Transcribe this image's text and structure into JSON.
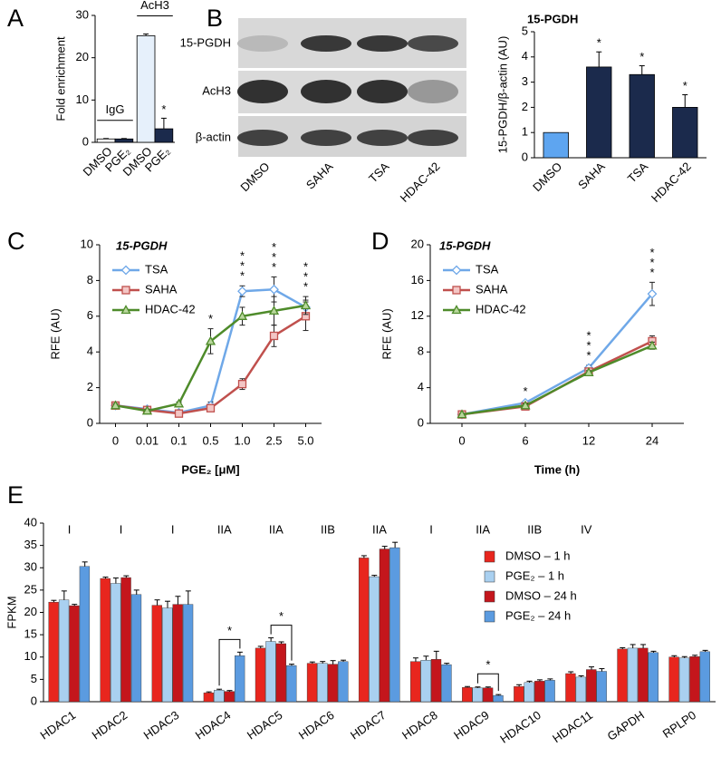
{
  "chart_data": [
    {
      "type": "bar",
      "panel": "A",
      "ylabel": "Fold enrichment",
      "categories": [
        "DMSO",
        "PGE₂",
        "DMSO",
        "PGE₂"
      ],
      "groups": [
        "IgG",
        "AcH3"
      ],
      "values": [
        0.8,
        0.8,
        25.2,
        3.2
      ],
      "errors": [
        0.1,
        0.1,
        0.4,
        2.5
      ],
      "colors": [
        "#ffffff",
        "#1b2a4c",
        "#e6f0fb",
        "#1b2a4c"
      ],
      "significance": [
        null,
        null,
        null,
        "*"
      ],
      "ylim": [
        0,
        30
      ],
      "yticks": [
        0,
        10,
        20,
        30
      ]
    },
    {
      "type": "bar",
      "panel": "B",
      "title": "15-PGDH",
      "ylabel": "15-PGDH/β-actin (AU)",
      "blot_rows": [
        "15-PGDH",
        "AcH3",
        "β-actin"
      ],
      "categories": [
        "DMSO",
        "SAHA",
        "TSA",
        "HDAC-42"
      ],
      "values": [
        1,
        3.6,
        3.3,
        2.0
      ],
      "errors": [
        null,
        0.6,
        0.35,
        0.5
      ],
      "colors": [
        "#5ea5f0",
        "#1b2a4c",
        "#1b2a4c",
        "#1b2a4c"
      ],
      "significance": [
        null,
        "*",
        "*",
        "*"
      ],
      "ylim": [
        0,
        5
      ],
      "yticks": [
        0,
        1,
        2,
        3,
        4,
        5
      ]
    },
    {
      "type": "line",
      "panel": "C",
      "title": "15-PGDH",
      "ylabel": "RFE (AU)",
      "xlabel": "PGE₂ [μM]",
      "categories": [
        "0",
        "0.01",
        "0.1",
        "0.5",
        "1.0",
        "2.5",
        "5.0"
      ],
      "series": [
        {
          "name": "TSA",
          "color": "#6fa8e8",
          "values": [
            1,
            0.8,
            0.6,
            1.0,
            7.4,
            7.5,
            6.5
          ],
          "errors": [
            0.1,
            0.1,
            0.1,
            0.2,
            0.3,
            0.7,
            0.4
          ],
          "significance": [
            null,
            null,
            null,
            null,
            "*",
            "*",
            "*"
          ]
        },
        {
          "name": "SAHA",
          "color": "#c0504d",
          "values": [
            1,
            0.75,
            0.55,
            0.85,
            2.2,
            4.9,
            6.0
          ],
          "errors": [
            0.1,
            0.1,
            0.1,
            0.1,
            0.3,
            0.6,
            0.8
          ],
          "significance": [
            null,
            null,
            null,
            null,
            "*",
            "*",
            "*"
          ]
        },
        {
          "name": "HDAC-42",
          "color": "#4e8b2a",
          "values": [
            1,
            0.7,
            1.1,
            4.6,
            6.0,
            6.3,
            6.6
          ],
          "errors": [
            0.1,
            0.1,
            0.1,
            0.7,
            0.5,
            0.8,
            0.5
          ],
          "significance": [
            null,
            null,
            null,
            "*",
            "*",
            "*",
            "*"
          ]
        }
      ],
      "ylim": [
        0,
        10
      ],
      "yticks": [
        0,
        2,
        4,
        6,
        8,
        10
      ]
    },
    {
      "type": "line",
      "panel": "D",
      "title": "15-PGDH",
      "ylabel": "RFE (AU)",
      "xlabel": "Time (h)",
      "categories": [
        "0",
        "6",
        "12",
        "24"
      ],
      "series": [
        {
          "name": "TSA",
          "color": "#6fa8e8",
          "values": [
            1,
            2.3,
            6.2,
            14.5
          ],
          "errors": [
            0.1,
            0.2,
            0.3,
            1.3
          ],
          "significance": [
            null,
            "*",
            "*",
            "*"
          ]
        },
        {
          "name": "SAHA",
          "color": "#c0504d",
          "values": [
            1,
            1.9,
            5.8,
            9.2
          ],
          "errors": [
            0.1,
            0.2,
            0.3,
            0.6
          ],
          "significance": [
            null,
            null,
            "*",
            "*"
          ]
        },
        {
          "name": "HDAC-42",
          "color": "#4e8b2a",
          "values": [
            1,
            2.0,
            5.7,
            8.7
          ],
          "errors": [
            0.1,
            0.2,
            0.2,
            0.4
          ],
          "significance": [
            null,
            null,
            "*",
            "*"
          ]
        }
      ],
      "ylim": [
        0,
        20
      ],
      "yticks": [
        0,
        4,
        8,
        12,
        16,
        20
      ]
    },
    {
      "type": "grouped_bar",
      "panel": "E",
      "ylabel": "FPKM",
      "categories": [
        "HDAC1",
        "HDAC2",
        "HDAC3",
        "HDAC4",
        "HDAC5",
        "HDAC6",
        "HDAC7",
        "HDAC8",
        "HDAC9",
        "HDAC10",
        "HDAC11",
        "GAPDH",
        "RPLP0"
      ],
      "classes": [
        "I",
        "I",
        "I",
        "IIA",
        "IIA",
        "IIB",
        "IIA",
        "I",
        "IIA",
        "IIB",
        "IV",
        null,
        null
      ],
      "significance": [
        null,
        null,
        null,
        "*",
        "*",
        null,
        null,
        null,
        "*",
        null,
        null,
        null,
        null
      ],
      "series": [
        {
          "name": "DMSO – 1 h",
          "color": "#e8261e",
          "values": [
            22.3,
            27.6,
            21.6,
            2.0,
            12.0,
            8.6,
            32.2,
            9.0,
            3.2,
            3.4,
            6.3,
            11.8,
            10.0
          ],
          "errors": [
            0.4,
            0.3,
            1.2,
            0.2,
            0.4,
            0.3,
            0.5,
            0.8,
            0.2,
            0.4,
            0.4,
            0.3,
            0.3
          ]
        },
        {
          "name": "PGE₂ – 1 h",
          "color": "#a9d0f0",
          "values": [
            22.8,
            26.5,
            21.0,
            2.6,
            13.5,
            8.6,
            28.0,
            9.3,
            3.1,
            4.3,
            5.5,
            12.0,
            9.8
          ],
          "errors": [
            2.0,
            1.2,
            1.5,
            0.2,
            0.8,
            0.4,
            0.3,
            0.9,
            0.2,
            0.3,
            0.3,
            0.8,
            0.3
          ]
        },
        {
          "name": "DMSO – 24 h",
          "color": "#c4161c",
          "values": [
            21.5,
            27.8,
            21.8,
            2.3,
            13.0,
            8.4,
            34.2,
            9.5,
            3.1,
            4.6,
            7.2,
            12.0,
            10.1
          ],
          "errors": [
            0.3,
            0.4,
            1.8,
            0.2,
            0.4,
            0.8,
            0.6,
            1.8,
            0.2,
            0.3,
            0.6,
            0.8,
            0.3
          ]
        },
        {
          "name": "PGE₂ – 24 h",
          "color": "#5b9be0",
          "values": [
            30.3,
            24.0,
            21.8,
            10.3,
            8.1,
            9.0,
            34.5,
            8.3,
            1.4,
            4.8,
            6.8,
            11.0,
            11.2
          ],
          "errors": [
            1.0,
            1.0,
            3.0,
            0.8,
            0.3,
            0.3,
            1.2,
            0.3,
            0.2,
            0.3,
            0.6,
            0.3,
            0.3
          ]
        }
      ],
      "ylim": [
        0,
        40
      ],
      "yticks": [
        0,
        5,
        10,
        15,
        20,
        25,
        30,
        35,
        40
      ]
    }
  ]
}
